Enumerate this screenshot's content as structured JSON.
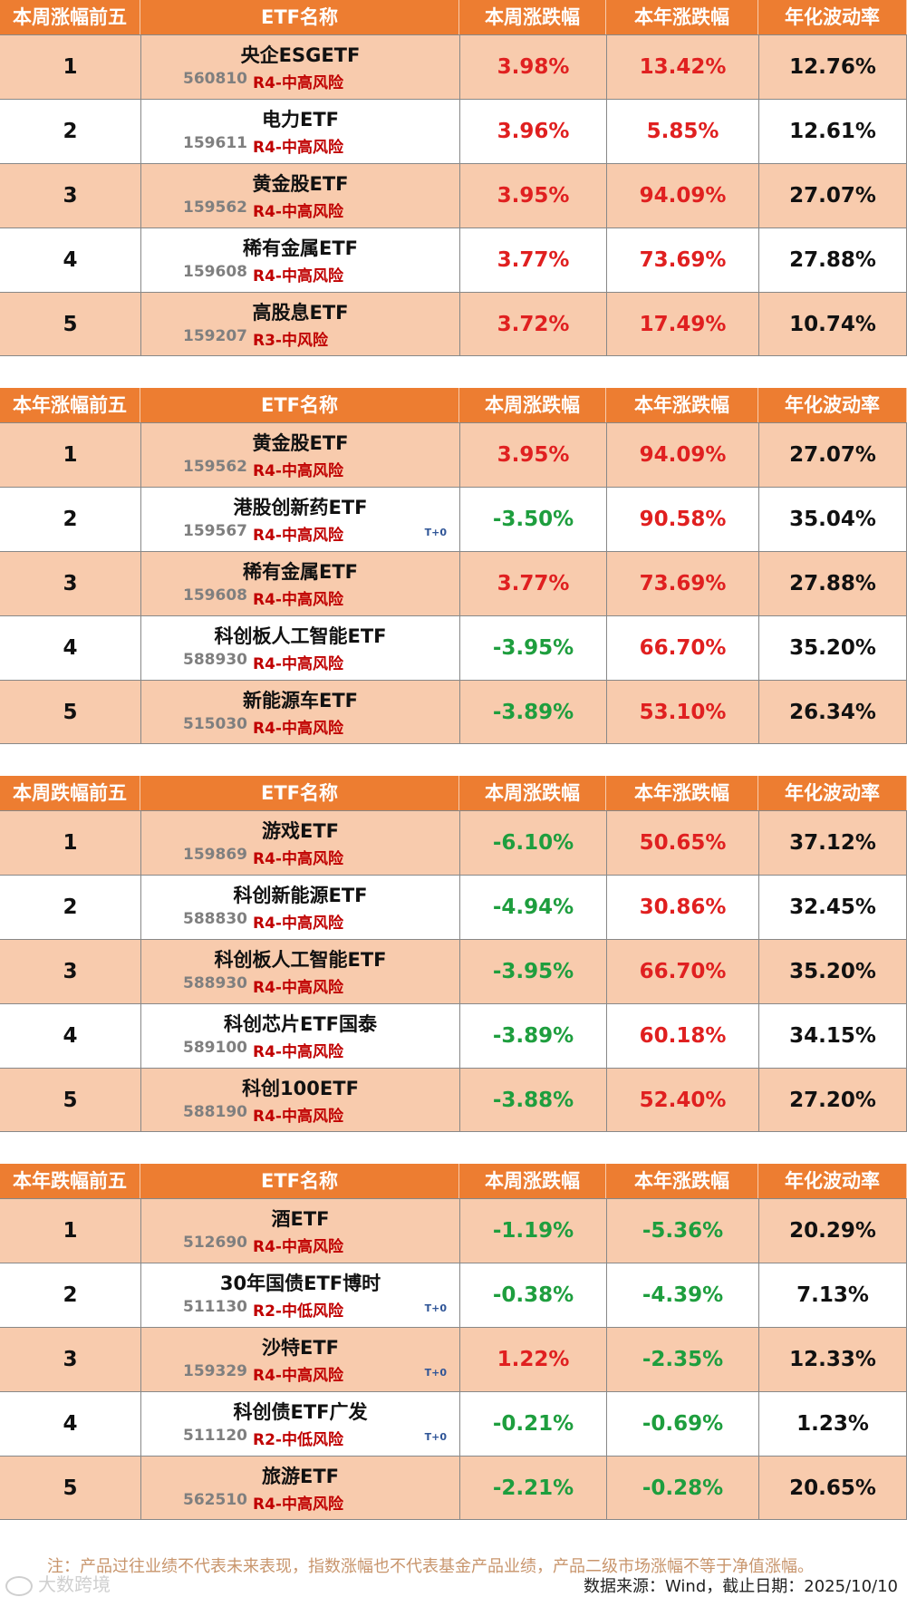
{
  "headers": [
    "ETF名称",
    "本周涨跌幅",
    "本年涨跌幅",
    "年化波动率"
  ],
  "tables": [
    {
      "title": "本周涨幅前五",
      "rows": [
        {
          "rank": "1",
          "name": "央企ESGETF",
          "code": "560810",
          "risk": "R4-中高风险",
          "t0": "",
          "week": "3.98%",
          "year": "13.42%",
          "vol": "12.76%",
          "week_sign": "pos",
          "year_sign": "pos"
        },
        {
          "rank": "2",
          "name": "电力ETF",
          "code": "159611",
          "risk": "R4-中高风险",
          "t0": "",
          "week": "3.96%",
          "year": "5.85%",
          "vol": "12.61%",
          "week_sign": "pos",
          "year_sign": "pos"
        },
        {
          "rank": "3",
          "name": "黄金股ETF",
          "code": "159562",
          "risk": "R4-中高风险",
          "t0": "",
          "week": "3.95%",
          "year": "94.09%",
          "vol": "27.07%",
          "week_sign": "pos",
          "year_sign": "pos"
        },
        {
          "rank": "4",
          "name": "稀有金属ETF",
          "code": "159608",
          "risk": "R4-中高风险",
          "t0": "",
          "week": "3.77%",
          "year": "73.69%",
          "vol": "27.88%",
          "week_sign": "pos",
          "year_sign": "pos"
        },
        {
          "rank": "5",
          "name": "高股息ETF",
          "code": "159207",
          "risk": "R3-中风险",
          "t0": "",
          "week": "3.72%",
          "year": "17.49%",
          "vol": "10.74%",
          "week_sign": "pos",
          "year_sign": "pos"
        }
      ]
    },
    {
      "title": "本年涨幅前五",
      "rows": [
        {
          "rank": "1",
          "name": "黄金股ETF",
          "code": "159562",
          "risk": "R4-中高风险",
          "t0": "",
          "week": "3.95%",
          "year": "94.09%",
          "vol": "27.07%",
          "week_sign": "pos",
          "year_sign": "pos"
        },
        {
          "rank": "2",
          "name": "港股创新药ETF",
          "code": "159567",
          "risk": "R4-中高风险",
          "t0": "T+0",
          "week": "-3.50%",
          "year": "90.58%",
          "vol": "35.04%",
          "week_sign": "neg",
          "year_sign": "pos"
        },
        {
          "rank": "3",
          "name": "稀有金属ETF",
          "code": "159608",
          "risk": "R4-中高风险",
          "t0": "",
          "week": "3.77%",
          "year": "73.69%",
          "vol": "27.88%",
          "week_sign": "pos",
          "year_sign": "pos"
        },
        {
          "rank": "4",
          "name": "科创板人工智能ETF",
          "code": "588930",
          "risk": "R4-中高风险",
          "t0": "",
          "week": "-3.95%",
          "year": "66.70%",
          "vol": "35.20%",
          "week_sign": "neg",
          "year_sign": "pos"
        },
        {
          "rank": "5",
          "name": "新能源车ETF",
          "code": "515030",
          "risk": "R4-中高风险",
          "t0": "",
          "week": "-3.89%",
          "year": "53.10%",
          "vol": "26.34%",
          "week_sign": "neg",
          "year_sign": "pos"
        }
      ]
    },
    {
      "title": "本周跌幅前五",
      "rows": [
        {
          "rank": "1",
          "name": "游戏ETF",
          "code": "159869",
          "risk": "R4-中高风险",
          "t0": "",
          "week": "-6.10%",
          "year": "50.65%",
          "vol": "37.12%",
          "week_sign": "neg",
          "year_sign": "pos"
        },
        {
          "rank": "2",
          "name": "科创新能源ETF",
          "code": "588830",
          "risk": "R4-中高风险",
          "t0": "",
          "week": "-4.94%",
          "year": "30.86%",
          "vol": "32.45%",
          "week_sign": "neg",
          "year_sign": "pos"
        },
        {
          "rank": "3",
          "name": "科创板人工智能ETF",
          "code": "588930",
          "risk": "R4-中高风险",
          "t0": "",
          "week": "-3.95%",
          "year": "66.70%",
          "vol": "35.20%",
          "week_sign": "neg",
          "year_sign": "pos"
        },
        {
          "rank": "4",
          "name": "科创芯片ETF国泰",
          "code": "589100",
          "risk": "R4-中高风险",
          "t0": "",
          "week": "-3.89%",
          "year": "60.18%",
          "vol": "34.15%",
          "week_sign": "neg",
          "year_sign": "pos"
        },
        {
          "rank": "5",
          "name": "科创100ETF",
          "code": "588190",
          "risk": "R4-中高风险",
          "t0": "",
          "week": "-3.88%",
          "year": "52.40%",
          "vol": "27.20%",
          "week_sign": "neg",
          "year_sign": "pos"
        }
      ]
    },
    {
      "title": "本年跌幅前五",
      "rows": [
        {
          "rank": "1",
          "name": "酒ETF",
          "code": "512690",
          "risk": "R4-中高风险",
          "t0": "",
          "week": "-1.19%",
          "year": "-5.36%",
          "vol": "20.29%",
          "week_sign": "neg",
          "year_sign": "neg"
        },
        {
          "rank": "2",
          "name": "30年国债ETF博时",
          "code": "511130",
          "risk": "R2-中低风险",
          "t0": "T+0",
          "week": "-0.38%",
          "year": "-4.39%",
          "vol": "7.13%",
          "week_sign": "neg",
          "year_sign": "neg"
        },
        {
          "rank": "3",
          "name": "沙特ETF",
          "code": "159329",
          "risk": "R4-中高风险",
          "t0": "T+0",
          "week": "1.22%",
          "year": "-2.35%",
          "vol": "12.33%",
          "week_sign": "pos",
          "year_sign": "neg"
        },
        {
          "rank": "4",
          "name": "科创债ETF广发",
          "code": "511120",
          "risk": "R2-中低风险",
          "t0": "T+0",
          "week": "-0.21%",
          "year": "-0.69%",
          "vol": "1.23%",
          "week_sign": "neg",
          "year_sign": "neg"
        },
        {
          "rank": "5",
          "name": "旅游ETF",
          "code": "562510",
          "risk": "R4-中高风险",
          "t0": "",
          "week": "-2.21%",
          "year": "-0.28%",
          "vol": "20.65%",
          "week_sign": "neg",
          "year_sign": "neg"
        }
      ]
    }
  ],
  "footer": {
    "note": "注：产品过往业绩不代表未来表现，指数涨幅也不代表基金产品业绩，产品二级市场涨幅不等于净值涨幅。",
    "source": "数据来源：Wind，截止日期：2025/10/10",
    "watermark": "大数跨境"
  },
  "colors": {
    "header_bg": "#ED7D31",
    "band_bg": "#F8CBAD",
    "up": "#E02020",
    "down": "#1E9E3E",
    "risk": "#C00000"
  }
}
